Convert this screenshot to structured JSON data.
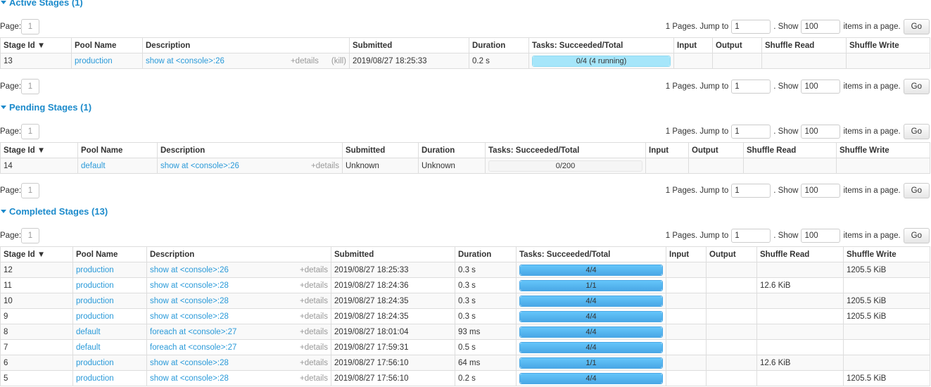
{
  "pager": {
    "page_label": "Page:",
    "page": "1",
    "pages_text": "1 Pages. Jump to",
    "jump_value": "1",
    "show_text": ". Show",
    "show_value": "100",
    "items_text": "items in a page.",
    "go_label": "Go"
  },
  "colors": {
    "link": "#2a9ad9",
    "heading": "#1b8acb",
    "completed_bar": "#5bbdf5",
    "running_bar": "#a6e6fa"
  },
  "sections": [
    {
      "title": "Active Stages (1)",
      "headers": [
        "Stage Id ▼",
        "Pool Name",
        "Description",
        "Submitted",
        "Duration",
        "Tasks: Succeeded/Total",
        "Input",
        "Output",
        "Shuffle Read",
        "Shuffle Write"
      ],
      "rows": [
        {
          "id": "13",
          "pool": "production",
          "desc": "show at <console>:26",
          "details": "+details",
          "kill": "(kill)",
          "submitted": "2019/08/27 18:25:33",
          "duration": "0.2 s",
          "tasks": "0/4 (4 running)",
          "succeeded": 0,
          "running": 4,
          "total": 4,
          "input": "",
          "output": "",
          "shuffle_read": "",
          "shuffle_write": ""
        }
      ]
    },
    {
      "title": "Pending Stages (1)",
      "headers": [
        "Stage Id ▼",
        "Pool Name",
        "Description",
        "Submitted",
        "Duration",
        "Tasks: Succeeded/Total",
        "Input",
        "Output",
        "Shuffle Read",
        "Shuffle Write"
      ],
      "rows": [
        {
          "id": "14",
          "pool": "default",
          "desc": "show at <console>:26",
          "details": "+details",
          "submitted": "Unknown",
          "duration": "Unknown",
          "tasks": "0/200",
          "succeeded": 0,
          "running": 0,
          "total": 200,
          "input": "",
          "output": "",
          "shuffle_read": "",
          "shuffle_write": ""
        }
      ]
    },
    {
      "title": "Completed Stages (13)",
      "headers": [
        "Stage Id ▼",
        "Pool Name",
        "Description",
        "Submitted",
        "Duration",
        "Tasks: Succeeded/Total",
        "Input",
        "Output",
        "Shuffle Read",
        "Shuffle Write"
      ],
      "rows": [
        {
          "id": "12",
          "pool": "production",
          "desc": "show at <console>:26",
          "details": "+details",
          "submitted": "2019/08/27 18:25:33",
          "duration": "0.3 s",
          "tasks": "4/4",
          "succeeded": 4,
          "running": 0,
          "total": 4,
          "input": "",
          "output": "",
          "shuffle_read": "",
          "shuffle_write": "1205.5 KiB"
        },
        {
          "id": "11",
          "pool": "production",
          "desc": "show at <console>:28",
          "details": "+details",
          "submitted": "2019/08/27 18:24:36",
          "duration": "0.3 s",
          "tasks": "1/1",
          "succeeded": 1,
          "running": 0,
          "total": 1,
          "input": "",
          "output": "",
          "shuffle_read": "12.6 KiB",
          "shuffle_write": ""
        },
        {
          "id": "10",
          "pool": "production",
          "desc": "show at <console>:28",
          "details": "+details",
          "submitted": "2019/08/27 18:24:35",
          "duration": "0.3 s",
          "tasks": "4/4",
          "succeeded": 4,
          "running": 0,
          "total": 4,
          "input": "",
          "output": "",
          "shuffle_read": "",
          "shuffle_write": "1205.5 KiB"
        },
        {
          "id": "9",
          "pool": "production",
          "desc": "show at <console>:28",
          "details": "+details",
          "submitted": "2019/08/27 18:24:35",
          "duration": "0.3 s",
          "tasks": "4/4",
          "succeeded": 4,
          "running": 0,
          "total": 4,
          "input": "",
          "output": "",
          "shuffle_read": "",
          "shuffle_write": "1205.5 KiB"
        },
        {
          "id": "8",
          "pool": "default",
          "desc": "foreach at <console>:27",
          "details": "+details",
          "submitted": "2019/08/27 18:01:04",
          "duration": "93 ms",
          "tasks": "4/4",
          "succeeded": 4,
          "running": 0,
          "total": 4,
          "input": "",
          "output": "",
          "shuffle_read": "",
          "shuffle_write": ""
        },
        {
          "id": "7",
          "pool": "default",
          "desc": "foreach at <console>:27",
          "details": "+details",
          "submitted": "2019/08/27 17:59:31",
          "duration": "0.5 s",
          "tasks": "4/4",
          "succeeded": 4,
          "running": 0,
          "total": 4,
          "input": "",
          "output": "",
          "shuffle_read": "",
          "shuffle_write": ""
        },
        {
          "id": "6",
          "pool": "production",
          "desc": "show at <console>:28",
          "details": "+details",
          "submitted": "2019/08/27 17:56:10",
          "duration": "64 ms",
          "tasks": "1/1",
          "succeeded": 1,
          "running": 0,
          "total": 1,
          "input": "",
          "output": "",
          "shuffle_read": "12.6 KiB",
          "shuffle_write": ""
        },
        {
          "id": "5",
          "pool": "production",
          "desc": "show at <console>:28",
          "details": "+details",
          "submitted": "2019/08/27 17:56:10",
          "duration": "0.2 s",
          "tasks": "4/4",
          "succeeded": 4,
          "running": 0,
          "total": 4,
          "input": "",
          "output": "",
          "shuffle_read": "",
          "shuffle_write": "1205.5 KiB"
        }
      ]
    }
  ]
}
